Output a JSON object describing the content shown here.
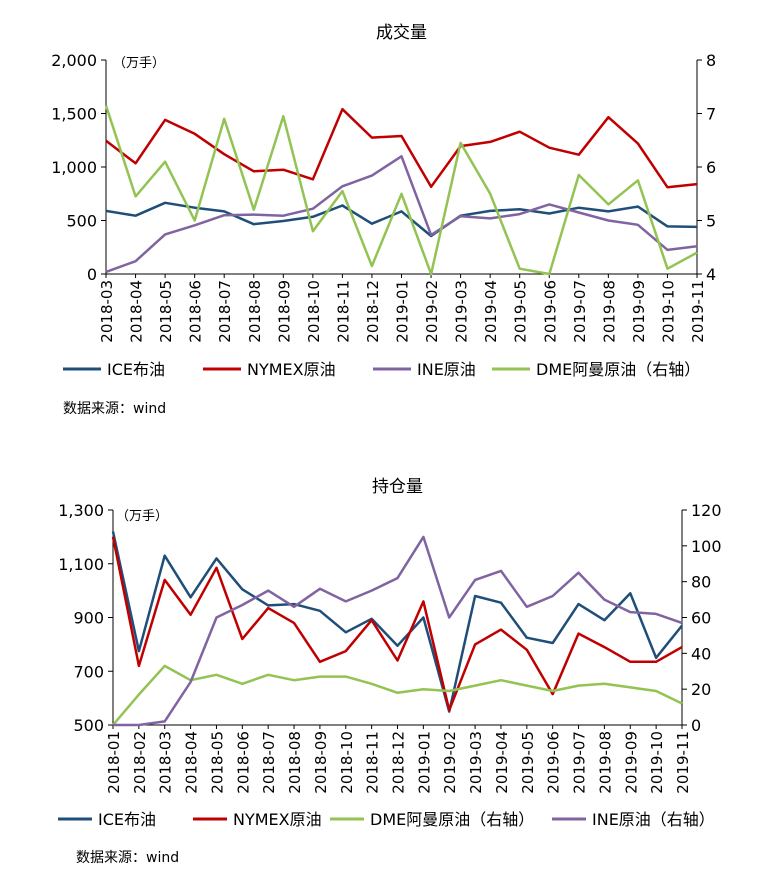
{
  "chart_data": [
    {
      "type": "line",
      "title": "成交量",
      "unit": "（万手）",
      "source": "数据来源：wind",
      "categories": [
        "2018-03",
        "2018-04",
        "2018-05",
        "2018-06",
        "2018-07",
        "2018-08",
        "2018-09",
        "2018-10",
        "2018-11",
        "2018-12",
        "2019-01",
        "2019-02",
        "2019-03",
        "2019-04",
        "2019-05",
        "2019-06",
        "2019-07",
        "2019-08",
        "2019-09",
        "2019-10",
        "2019-11"
      ],
      "ylim": [
        0,
        2000
      ],
      "yticks": [
        "0",
        "500",
        "1,000",
        "1,500",
        "2,000"
      ],
      "y2lim": [
        4,
        8
      ],
      "y2ticks": [
        "4",
        "5",
        "6",
        "7",
        "8"
      ],
      "legend_position": "bottom",
      "series": [
        {
          "name": "ICE布油",
          "color": "#1f4e79",
          "axis": "left",
          "values": [
            590,
            545,
            665,
            620,
            585,
            465,
            495,
            535,
            640,
            470,
            585,
            355,
            545,
            590,
            605,
            565,
            620,
            585,
            630,
            445,
            440
          ]
        },
        {
          "name": "NYMEX原油",
          "color": "#c00000",
          "axis": "left",
          "values": [
            1245,
            1035,
            1440,
            1310,
            1120,
            960,
            975,
            885,
            1540,
            1275,
            1290,
            815,
            1195,
            1235,
            1330,
            1180,
            1115,
            1465,
            1220,
            810,
            840
          ]
        },
        {
          "name": "INE原油",
          "color": "#8064a2",
          "axis": "left",
          "values": [
            20,
            120,
            370,
            455,
            550,
            555,
            545,
            610,
            820,
            920,
            1100,
            365,
            540,
            520,
            560,
            650,
            575,
            500,
            460,
            225,
            260
          ]
        },
        {
          "name": "DME阿曼原油（右轴）",
          "color": "#92c353",
          "axis": "right",
          "values": [
            7.15,
            5.45,
            6.1,
            5.0,
            6.9,
            5.2,
            6.95,
            4.8,
            5.55,
            4.15,
            5.5,
            4.0,
            6.45,
            5.5,
            4.1,
            4.0,
            5.85,
            5.3,
            5.75,
            4.1,
            4.4
          ]
        }
      ]
    },
    {
      "type": "line",
      "title": "持仓量",
      "unit": "（万手）",
      "source": "数据来源：wind",
      "categories": [
        "2018-01",
        "2018-02",
        "2018-03",
        "2018-04",
        "2018-05",
        "2018-06",
        "2018-07",
        "2018-08",
        "2018-09",
        "2018-10",
        "2018-11",
        "2018-12",
        "2019-01",
        "2019-02",
        "2019-03",
        "2019-04",
        "2019-05",
        "2019-06",
        "2019-07",
        "2019-08",
        "2019-09",
        "2019-10",
        "2019-11"
      ],
      "ylim": [
        500,
        1300
      ],
      "yticks": [
        "500",
        "700",
        "900",
        "1,100",
        "1,300"
      ],
      "y2lim": [
        0,
        120
      ],
      "y2ticks": [
        "0",
        "20",
        "40",
        "60",
        "80",
        "100",
        "120"
      ],
      "legend_position": "bottom",
      "series": [
        {
          "name": "ICE布油",
          "color": "#1f4e79",
          "axis": "left",
          "values": [
            1220,
            775,
            1130,
            975,
            1120,
            1005,
            945,
            950,
            925,
            845,
            895,
            795,
            900,
            550,
            980,
            955,
            825,
            805,
            950,
            890,
            990,
            750,
            870
          ]
        },
        {
          "name": "NYMEX原油",
          "color": "#c00000",
          "axis": "left",
          "values": [
            1200,
            720,
            1040,
            910,
            1085,
            820,
            935,
            880,
            735,
            775,
            890,
            740,
            960,
            555,
            800,
            855,
            780,
            615,
            840,
            790,
            735,
            735,
            790
          ]
        },
        {
          "name": "DME阿曼原油（右轴）",
          "color": "#92c353",
          "axis": "right",
          "values": [
            0,
            17,
            33,
            25,
            28,
            23,
            28,
            25,
            27,
            27,
            23,
            18,
            20,
            19,
            22,
            25,
            22,
            19,
            22,
            23,
            21,
            19,
            12
          ]
        },
        {
          "name": "INE原油（右轴）",
          "color": "#8064a2",
          "axis": "right",
          "values": [
            0,
            0,
            2,
            24,
            60,
            67,
            75,
            66,
            76,
            69,
            75,
            82,
            105,
            60,
            81,
            86,
            66,
            72,
            85,
            70,
            63,
            62,
            57
          ]
        }
      ]
    }
  ]
}
